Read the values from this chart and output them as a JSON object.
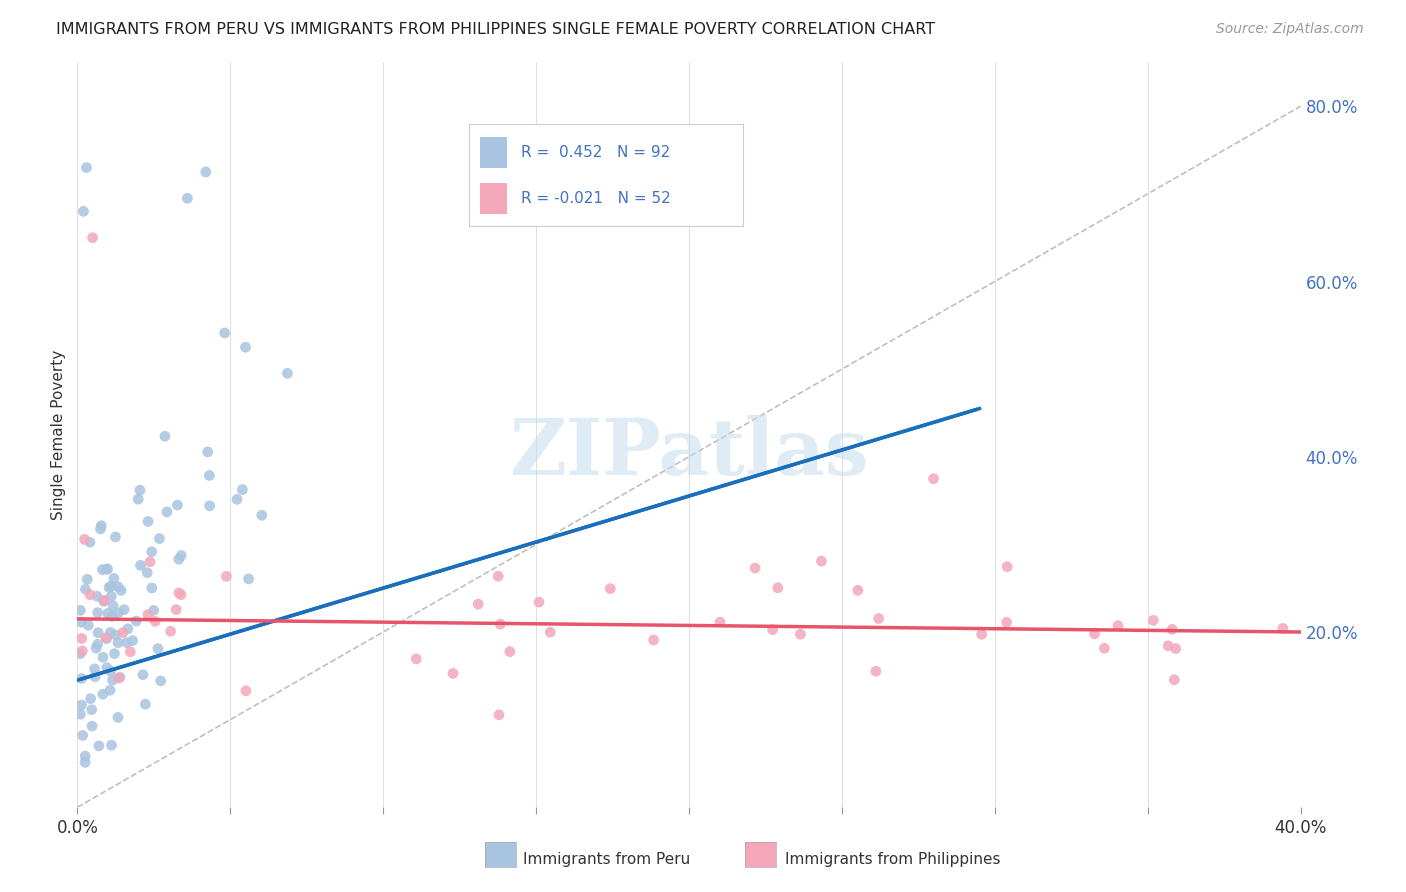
{
  "title": "IMMIGRANTS FROM PERU VS IMMIGRANTS FROM PHILIPPINES SINGLE FEMALE POVERTY CORRELATION CHART",
  "source": "Source: ZipAtlas.com",
  "ylabel": "Single Female Poverty",
  "right_yticks": [
    "20.0%",
    "40.0%",
    "60.0%",
    "80.0%"
  ],
  "right_ytick_vals": [
    0.2,
    0.4,
    0.6,
    0.8
  ],
  "xlim": [
    0.0,
    0.4
  ],
  "ylim": [
    0.0,
    0.85
  ],
  "peru_R": 0.452,
  "peru_N": 92,
  "phil_R": -0.021,
  "phil_N": 52,
  "peru_color": "#a8c4e0",
  "phil_color": "#f4a7b9",
  "peru_line_color": "#1a6fbd",
  "phil_line_color": "#e8546a",
  "diag_color": "#b8b8b8",
  "watermark": "ZIPatlas",
  "background_color": "#ffffff",
  "grid_color": "#e0e0e0",
  "peru_line_x0": 0.0,
  "peru_line_y0": 0.145,
  "peru_line_x1": 0.295,
  "peru_line_y1": 0.455,
  "phil_line_x0": 0.0,
  "phil_line_y0": 0.215,
  "phil_line_x1": 0.4,
  "phil_line_y1": 0.2
}
